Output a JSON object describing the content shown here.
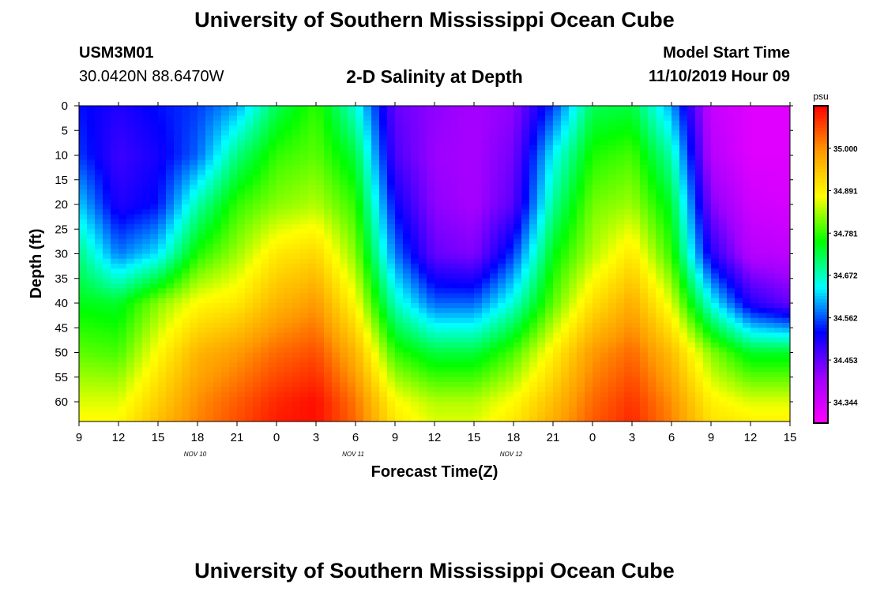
{
  "page": {
    "title_top": "University of Southern Mississippi Ocean Cube",
    "title_bottom": "University of Southern Mississippi Ocean Cube",
    "station_id": "USM3M01",
    "station_location": "30.0420N 88.6470W",
    "model_start_label": "Model Start Time",
    "model_start_value": "11/10/2019 Hour 09"
  },
  "chart_data": {
    "type": "heatmap",
    "title": "2-D Salinity at Depth",
    "xlabel": "Forecast Time(Z)",
    "ylabel": "Depth (ft)",
    "x_tick_labels": [
      "9",
      "12",
      "15",
      "18",
      "21",
      "0",
      "3",
      "6",
      "9",
      "12",
      "15",
      "18",
      "21",
      "0",
      "3",
      "6",
      "9",
      "12",
      "15"
    ],
    "x_date_labels": [
      {
        "label": "NOV 10",
        "at_tick": 4
      },
      {
        "label": "NOV 11",
        "at_tick": 12
      },
      {
        "label": "NOV 12",
        "at_tick": 20
      }
    ],
    "x_range_hours": [
      0,
      54
    ],
    "y_tick_labels": [
      "0",
      "5",
      "10",
      "15",
      "20",
      "25",
      "30",
      "35",
      "40",
      "45",
      "50",
      "55",
      "60"
    ],
    "y_range": [
      0,
      64
    ],
    "y_inverted": true,
    "colorbar": {
      "unit": "psu",
      "ticks": [
        "35.000",
        "34.891",
        "34.781",
        "34.672",
        "34.562",
        "34.453",
        "34.344"
      ],
      "range": [
        34.29,
        35.11
      ],
      "colors": [
        "#ff00ff",
        "#a000ff",
        "#0000ff",
        "#00ffff",
        "#00ff00",
        "#ffff00",
        "#ff9900",
        "#ff0000"
      ]
    },
    "data_grid": {
      "x_hours": [
        0,
        3,
        6,
        9,
        12,
        15,
        18,
        21,
        24,
        27,
        30,
        33,
        36,
        39,
        42,
        45,
        48,
        51,
        54
      ],
      "depth_ft": [
        0,
        10,
        20,
        30,
        40,
        50,
        60,
        64
      ],
      "values": [
        [
          34.53,
          34.5,
          34.53,
          34.55,
          34.6,
          34.72,
          34.78,
          34.66,
          34.45,
          34.42,
          34.4,
          34.42,
          34.55,
          34.72,
          34.73,
          34.6,
          34.36,
          34.33,
          34.33
        ],
        [
          34.55,
          34.48,
          34.51,
          34.57,
          34.7,
          34.78,
          34.8,
          34.73,
          34.47,
          34.41,
          34.4,
          34.44,
          34.64,
          34.77,
          34.79,
          34.68,
          34.38,
          34.33,
          34.33
        ],
        [
          34.62,
          34.5,
          34.53,
          34.68,
          34.78,
          34.82,
          34.84,
          34.78,
          34.52,
          34.42,
          34.4,
          34.46,
          34.69,
          34.81,
          34.83,
          34.74,
          34.43,
          34.35,
          34.34
        ],
        [
          34.7,
          34.58,
          34.63,
          34.77,
          34.83,
          34.9,
          34.92,
          34.82,
          34.58,
          34.45,
          34.43,
          34.55,
          34.75,
          34.84,
          34.9,
          34.78,
          34.5,
          34.38,
          34.37
        ],
        [
          34.75,
          34.74,
          34.82,
          34.88,
          34.9,
          34.96,
          34.99,
          34.88,
          34.67,
          34.57,
          34.57,
          34.66,
          34.8,
          34.91,
          34.97,
          34.86,
          34.65,
          34.5,
          34.45
        ],
        [
          34.8,
          34.79,
          34.88,
          34.96,
          34.99,
          35.03,
          35.05,
          34.96,
          34.78,
          34.73,
          34.73,
          34.79,
          34.89,
          34.99,
          35.03,
          34.95,
          34.82,
          34.74,
          34.74
        ],
        [
          34.86,
          34.86,
          34.93,
          35.0,
          35.04,
          35.08,
          35.1,
          35.02,
          34.88,
          34.84,
          34.84,
          34.88,
          34.95,
          35.03,
          35.07,
          35.0,
          34.89,
          34.86,
          34.86
        ],
        [
          34.88,
          34.88,
          34.95,
          35.01,
          35.05,
          35.09,
          35.1,
          35.03,
          34.9,
          34.86,
          34.86,
          34.9,
          34.97,
          35.04,
          35.08,
          35.01,
          34.91,
          34.89,
          34.89
        ]
      ]
    }
  }
}
